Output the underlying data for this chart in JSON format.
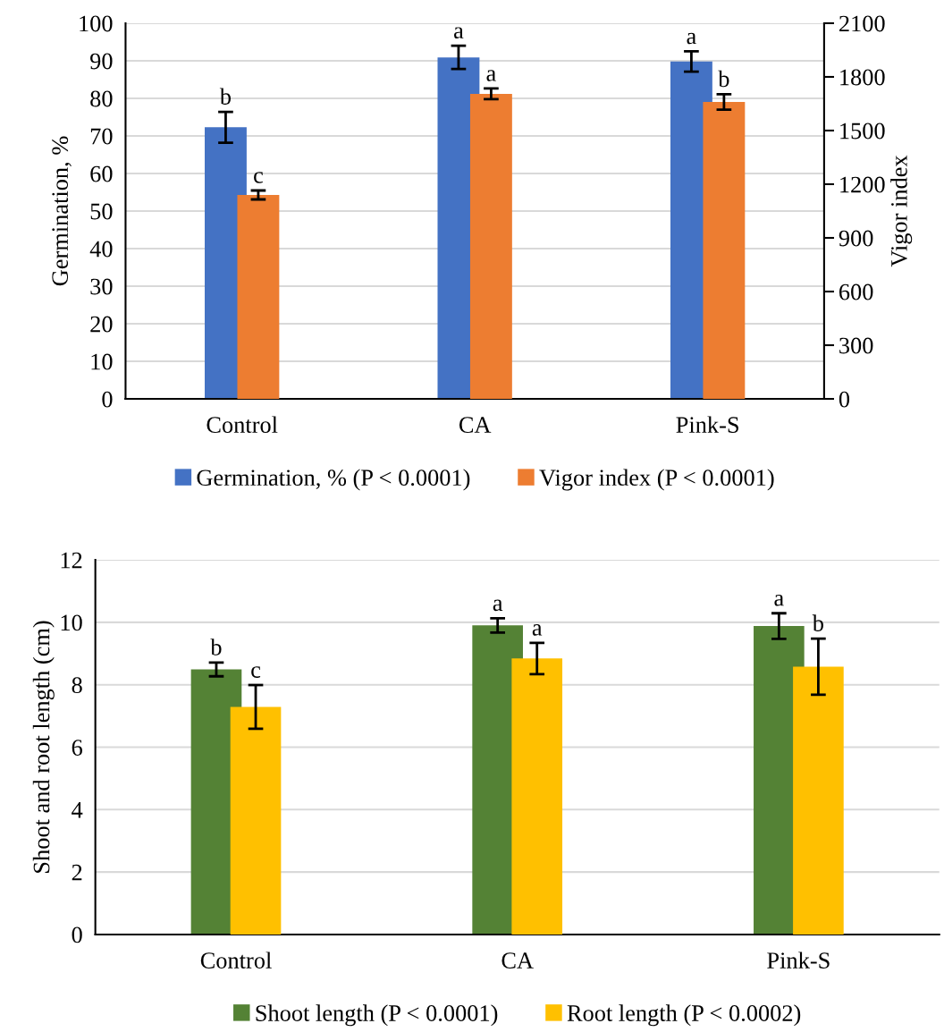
{
  "chart_data": [
    {
      "type": "bar",
      "categories": [
        "Control",
        "CA",
        "Pink-S"
      ],
      "ylabel": "Germination, %",
      "y2label": "Vigor index",
      "ylim": [
        0,
        100
      ],
      "yticks": [
        0,
        10,
        20,
        30,
        40,
        50,
        60,
        70,
        80,
        90,
        100
      ],
      "y2lim": [
        0,
        2100
      ],
      "y2ticks": [
        0,
        300,
        600,
        900,
        1200,
        1500,
        1800,
        2100
      ],
      "grid": "y",
      "legend": "bottom",
      "series": [
        {
          "name": "Germination, % (P < 0.0001)",
          "color": "#4472c4",
          "values": [
            72.3,
            90.9,
            89.8
          ],
          "errors": [
            4.1,
            3.1,
            2.7
          ],
          "value_labels": [
            "b",
            "a",
            "a"
          ]
        },
        {
          "name": "Vigor index (P < 0.0001)",
          "color": "#ed7d31",
          "axis": "y2",
          "values": [
            1140,
            1705,
            1660
          ],
          "errors": [
            25,
            30,
            43
          ],
          "value_labels": [
            "c",
            "a",
            "b"
          ]
        }
      ]
    },
    {
      "type": "bar",
      "categories": [
        "Control",
        "CA",
        "Pink-S"
      ],
      "ylabel": "Shoot and root length (cm)",
      "ylim": [
        0,
        12
      ],
      "yticks": [
        0,
        2,
        4,
        6,
        8,
        10,
        12
      ],
      "grid": "y",
      "legend": "bottom",
      "series": [
        {
          "name": "Shoot length (P < 0.0001)",
          "color": "#548235",
          "values": [
            8.49,
            9.9,
            9.88
          ],
          "errors": [
            0.22,
            0.23,
            0.41
          ],
          "value_labels": [
            "b",
            "a",
            "a"
          ]
        },
        {
          "name": "Root length (P < 0.0002)",
          "color": "#ffc000",
          "values": [
            7.29,
            8.84,
            8.58
          ],
          "errors": [
            0.7,
            0.5,
            0.9
          ],
          "value_labels": [
            "c",
            "a",
            "b"
          ]
        }
      ]
    }
  ]
}
